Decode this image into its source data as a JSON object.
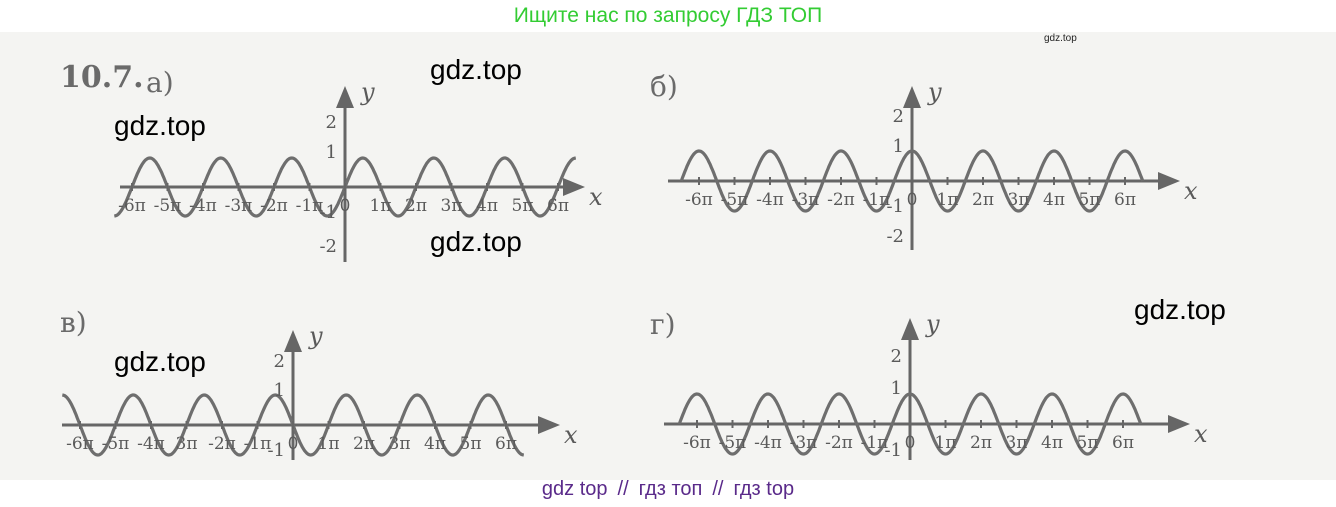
{
  "header": {
    "title": "Ищите нас по запросу ГДЗ ТОП"
  },
  "corner_mark": "gdz.top",
  "watermarks": [
    "gdz.top",
    "gdz.top",
    "gdz.top",
    "gdz.top",
    "gdz.top"
  ],
  "problem_number": "10.7.",
  "graphs": [
    {
      "label": "а)",
      "x_labels": [
        "-6π",
        "-5π",
        "-4π",
        "-3π",
        "-2π",
        "-1π",
        "0",
        "1π",
        "2π",
        "3π",
        "4π",
        "5π",
        "6π"
      ],
      "y_labels": [
        "2",
        "1",
        "-1",
        "-2"
      ],
      "x_axis_name": "x",
      "y_axis_name": "y",
      "curve": "sin"
    },
    {
      "label": "б)",
      "x_labels": [
        "-6π",
        "-5π",
        "-4π",
        "-3π",
        "-2π",
        "-1π",
        "0",
        "1π",
        "2π",
        "3π",
        "4π",
        "5π",
        "6π"
      ],
      "y_labels": [
        "2",
        "1",
        "-1",
        "-2"
      ],
      "x_axis_name": "x",
      "y_axis_name": "y",
      "curve": "cos"
    },
    {
      "label": "в)",
      "x_labels": [
        "-6π",
        "-5π",
        "-4π",
        "3π",
        "-2π",
        "-1π",
        "0",
        "1π",
        "2π",
        "3π",
        "4π",
        "5π",
        "6π"
      ],
      "y_labels": [
        "2",
        "1",
        "-1"
      ],
      "x_axis_name": "x",
      "y_axis_name": "y",
      "curve": "-sin"
    },
    {
      "label": "г)",
      "x_labels": [
        "-6π",
        "-5π",
        "-4π",
        "-3π",
        "-2π",
        "-1π",
        "0",
        "1π",
        "2π",
        "3π",
        "4π",
        "5π",
        "6π"
      ],
      "y_labels": [
        "2",
        "1",
        "-1"
      ],
      "x_axis_name": "x",
      "y_axis_name": "y",
      "curve": "cos"
    }
  ],
  "footer": {
    "part1": "gdz top",
    "sep1": "//",
    "part2": "гдз топ",
    "sep2": "//",
    "part3": "гдз top"
  }
}
